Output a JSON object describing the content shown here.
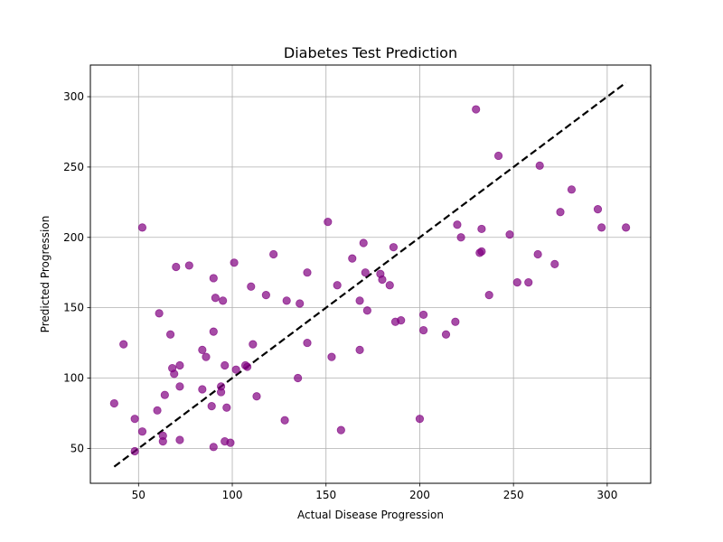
{
  "chart_data": {
    "type": "scatter",
    "title": "Diabetes Test Prediction",
    "xlabel": "Actual Disease Progression",
    "ylabel": "Predicted Progression",
    "xlim": [
      24.3,
      323.2
    ],
    "ylim": [
      25.2,
      322.5
    ],
    "xticks": [
      50,
      100,
      150,
      200,
      250,
      300
    ],
    "yticks": [
      50,
      100,
      150,
      200,
      250,
      300
    ],
    "grid": true,
    "point_color": "#800080",
    "point_opacity": 0.7,
    "reference_line": {
      "x": [
        37,
        310
      ],
      "y": [
        37,
        310
      ],
      "color": "#000000",
      "style": "dashed"
    },
    "points": [
      [
        37,
        82
      ],
      [
        42,
        124
      ],
      [
        48,
        71
      ],
      [
        48,
        48
      ],
      [
        52,
        207
      ],
      [
        52,
        62
      ],
      [
        60,
        77
      ],
      [
        61,
        146
      ],
      [
        63,
        59
      ],
      [
        63,
        55
      ],
      [
        64,
        88
      ],
      [
        67,
        131
      ],
      [
        68,
        107
      ],
      [
        69,
        103
      ],
      [
        70,
        179
      ],
      [
        72,
        109
      ],
      [
        72,
        94
      ],
      [
        72,
        56
      ],
      [
        77,
        180
      ],
      [
        84,
        92
      ],
      [
        84,
        120
      ],
      [
        86,
        115
      ],
      [
        89,
        80
      ],
      [
        90,
        51
      ],
      [
        90,
        133
      ],
      [
        90,
        171
      ],
      [
        91,
        157
      ],
      [
        94,
        94
      ],
      [
        94,
        90
      ],
      [
        95,
        155
      ],
      [
        96,
        55
      ],
      [
        96,
        109
      ],
      [
        97,
        79
      ],
      [
        99,
        54
      ],
      [
        101,
        182
      ],
      [
        102,
        106
      ],
      [
        107,
        109
      ],
      [
        108,
        108
      ],
      [
        110,
        165
      ],
      [
        111,
        124
      ],
      [
        113,
        87
      ],
      [
        118,
        159
      ],
      [
        122,
        188
      ],
      [
        128,
        70
      ],
      [
        129,
        155
      ],
      [
        135,
        100
      ],
      [
        136,
        153
      ],
      [
        140,
        175
      ],
      [
        140,
        125
      ],
      [
        151,
        211
      ],
      [
        153,
        115
      ],
      [
        156,
        166
      ],
      [
        158,
        63
      ],
      [
        164,
        185
      ],
      [
        168,
        155
      ],
      [
        168,
        120
      ],
      [
        170,
        196
      ],
      [
        171,
        175
      ],
      [
        172,
        148
      ],
      [
        179,
        174
      ],
      [
        180,
        170
      ],
      [
        184,
        166
      ],
      [
        186,
        193
      ],
      [
        187,
        140
      ],
      [
        190,
        141
      ],
      [
        200,
        71
      ],
      [
        202,
        134
      ],
      [
        202,
        145
      ],
      [
        214,
        131
      ],
      [
        219,
        140
      ],
      [
        220,
        209
      ],
      [
        222,
        200
      ],
      [
        230,
        291
      ],
      [
        232,
        189
      ],
      [
        233,
        190
      ],
      [
        233,
        206
      ],
      [
        237,
        159
      ],
      [
        242,
        258
      ],
      [
        248,
        202
      ],
      [
        252,
        168
      ],
      [
        258,
        168
      ],
      [
        263,
        188
      ],
      [
        264,
        251
      ],
      [
        272,
        181
      ],
      [
        275,
        218
      ],
      [
        281,
        234
      ],
      [
        295,
        220
      ],
      [
        297,
        207
      ],
      [
        310,
        207
      ]
    ]
  }
}
